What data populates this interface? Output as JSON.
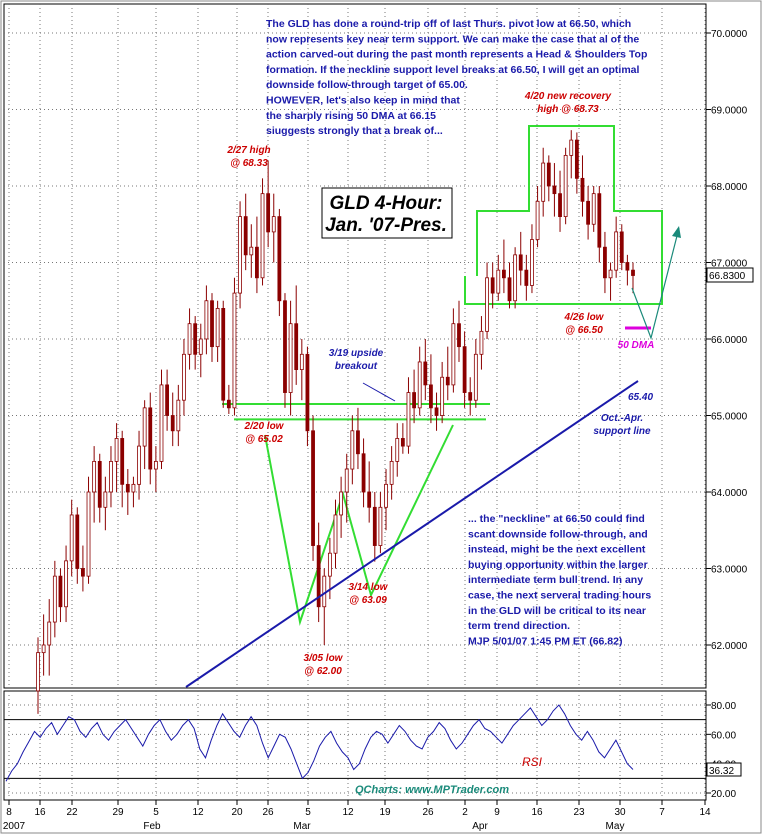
{
  "chart_data": {
    "type": "candlestick",
    "title_box": [
      "GLD 4-Hour:",
      "Jan. '07-Pres."
    ],
    "price_axis": {
      "ticks": [
        62.0,
        63.0,
        64.0,
        65.0,
        66.0,
        67.0,
        68.0,
        69.0,
        70.0
      ],
      "tick_labels": [
        "62.0000",
        "63.0000",
        "64.0000",
        "65.0000",
        "66.0000",
        "67.0000",
        "68.0000",
        "69.0000",
        "70.0000"
      ],
      "ylim": [
        61.6,
        70.4
      ],
      "last_price_label": "66.8300",
      "last_price": 66.83
    },
    "x_axis": {
      "tick_labels": [
        "8",
        "16",
        "22",
        "29",
        "5",
        "12",
        "20",
        "26",
        "5",
        "12",
        "19",
        "26",
        "2",
        "9",
        "16",
        "23",
        "30",
        "7",
        "14"
      ],
      "month_labels": [
        "2007",
        "Feb",
        "Mar",
        "Apr",
        "May"
      ]
    },
    "price_bars": [
      {
        "o": 61.4,
        "h": 62.1,
        "l": 61.1,
        "c": 61.9
      },
      {
        "o": 61.9,
        "h": 62.4,
        "l": 61.6,
        "c": 62.0
      },
      {
        "o": 62.0,
        "h": 62.6,
        "l": 61.6,
        "c": 62.3
      },
      {
        "o": 62.3,
        "h": 63.1,
        "l": 62.1,
        "c": 62.9
      },
      {
        "o": 62.9,
        "h": 63.0,
        "l": 62.3,
        "c": 62.5
      },
      {
        "o": 62.5,
        "h": 63.3,
        "l": 62.3,
        "c": 63.1
      },
      {
        "o": 63.1,
        "h": 63.9,
        "l": 62.9,
        "c": 63.7
      },
      {
        "o": 63.7,
        "h": 63.8,
        "l": 62.8,
        "c": 63.0
      },
      {
        "o": 63.0,
        "h": 63.3,
        "l": 62.7,
        "c": 62.9
      },
      {
        "o": 62.9,
        "h": 64.2,
        "l": 62.8,
        "c": 64.0
      },
      {
        "o": 64.0,
        "h": 64.6,
        "l": 63.6,
        "c": 64.4
      },
      {
        "o": 64.4,
        "h": 64.5,
        "l": 63.6,
        "c": 63.8
      },
      {
        "o": 63.8,
        "h": 64.2,
        "l": 63.5,
        "c": 64.0
      },
      {
        "o": 64.0,
        "h": 64.6,
        "l": 63.8,
        "c": 64.4
      },
      {
        "o": 64.4,
        "h": 64.9,
        "l": 64.0,
        "c": 64.7
      },
      {
        "o": 64.7,
        "h": 64.8,
        "l": 63.8,
        "c": 64.1
      },
      {
        "o": 64.1,
        "h": 64.3,
        "l": 63.7,
        "c": 64.0
      },
      {
        "o": 64.0,
        "h": 64.2,
        "l": 63.8,
        "c": 64.1
      },
      {
        "o": 64.1,
        "h": 64.8,
        "l": 63.9,
        "c": 64.6
      },
      {
        "o": 64.6,
        "h": 65.2,
        "l": 64.3,
        "c": 65.1
      },
      {
        "o": 65.1,
        "h": 65.3,
        "l": 64.1,
        "c": 64.3
      },
      {
        "o": 64.3,
        "h": 64.6,
        "l": 64.0,
        "c": 64.4
      },
      {
        "o": 64.4,
        "h": 65.6,
        "l": 64.3,
        "c": 65.4
      },
      {
        "o": 65.4,
        "h": 65.6,
        "l": 64.8,
        "c": 65.0
      },
      {
        "o": 65.0,
        "h": 65.3,
        "l": 64.6,
        "c": 64.8
      },
      {
        "o": 64.8,
        "h": 65.4,
        "l": 64.6,
        "c": 65.2
      },
      {
        "o": 65.2,
        "h": 66.0,
        "l": 65.0,
        "c": 65.8
      },
      {
        "o": 65.8,
        "h": 66.4,
        "l": 65.6,
        "c": 66.2
      },
      {
        "o": 66.2,
        "h": 66.3,
        "l": 65.6,
        "c": 65.8
      },
      {
        "o": 65.8,
        "h": 66.2,
        "l": 65.5,
        "c": 66.0
      },
      {
        "o": 66.0,
        "h": 66.7,
        "l": 65.8,
        "c": 66.5
      },
      {
        "o": 66.5,
        "h": 66.6,
        "l": 65.7,
        "c": 65.9
      },
      {
        "o": 65.9,
        "h": 66.5,
        "l": 65.7,
        "c": 66.4
      },
      {
        "o": 66.4,
        "h": 66.5,
        "l": 65.1,
        "c": 65.2
      },
      {
        "o": 65.2,
        "h": 65.4,
        "l": 65.02,
        "c": 65.1
      },
      {
        "o": 65.1,
        "h": 66.8,
        "l": 65.0,
        "c": 66.6
      },
      {
        "o": 66.6,
        "h": 67.8,
        "l": 66.4,
        "c": 67.6
      },
      {
        "o": 67.6,
        "h": 67.9,
        "l": 66.9,
        "c": 67.1
      },
      {
        "o": 67.1,
        "h": 67.5,
        "l": 66.8,
        "c": 67.2
      },
      {
        "o": 67.2,
        "h": 67.6,
        "l": 66.6,
        "c": 66.8
      },
      {
        "o": 66.8,
        "h": 68.1,
        "l": 66.7,
        "c": 67.9
      },
      {
        "o": 67.9,
        "h": 68.33,
        "l": 67.2,
        "c": 67.4
      },
      {
        "o": 67.4,
        "h": 67.9,
        "l": 67.0,
        "c": 67.6
      },
      {
        "o": 67.6,
        "h": 67.7,
        "l": 66.3,
        "c": 66.5
      },
      {
        "o": 66.5,
        "h": 66.6,
        "l": 65.1,
        "c": 65.3
      },
      {
        "o": 65.3,
        "h": 66.5,
        "l": 65.0,
        "c": 66.2
      },
      {
        "o": 66.2,
        "h": 66.7,
        "l": 65.4,
        "c": 65.6
      },
      {
        "o": 65.6,
        "h": 66.0,
        "l": 65.2,
        "c": 65.8
      },
      {
        "o": 65.8,
        "h": 65.9,
        "l": 64.6,
        "c": 64.8
      },
      {
        "o": 64.8,
        "h": 65.0,
        "l": 63.1,
        "c": 63.3
      },
      {
        "o": 63.3,
        "h": 63.6,
        "l": 62.3,
        "c": 62.5
      },
      {
        "o": 62.5,
        "h": 63.0,
        "l": 62.0,
        "c": 62.9
      },
      {
        "o": 62.9,
        "h": 63.4,
        "l": 62.6,
        "c": 63.2
      },
      {
        "o": 63.2,
        "h": 63.9,
        "l": 63.0,
        "c": 63.7
      },
      {
        "o": 63.7,
        "h": 64.2,
        "l": 63.4,
        "c": 64.0
      },
      {
        "o": 64.0,
        "h": 64.5,
        "l": 63.6,
        "c": 64.3
      },
      {
        "o": 64.3,
        "h": 65.0,
        "l": 64.1,
        "c": 64.8
      },
      {
        "o": 64.8,
        "h": 65.1,
        "l": 64.3,
        "c": 64.5
      },
      {
        "o": 64.5,
        "h": 64.7,
        "l": 63.8,
        "c": 64.0
      },
      {
        "o": 64.0,
        "h": 64.4,
        "l": 63.6,
        "c": 63.8
      },
      {
        "o": 63.8,
        "h": 64.0,
        "l": 63.09,
        "c": 63.3
      },
      {
        "o": 63.3,
        "h": 64.0,
        "l": 63.2,
        "c": 63.8
      },
      {
        "o": 63.8,
        "h": 64.3,
        "l": 63.5,
        "c": 64.1
      },
      {
        "o": 64.1,
        "h": 64.6,
        "l": 63.9,
        "c": 64.4
      },
      {
        "o": 64.4,
        "h": 64.9,
        "l": 64.2,
        "c": 64.7
      },
      {
        "o": 64.7,
        "h": 64.9,
        "l": 64.5,
        "c": 64.6
      },
      {
        "o": 64.6,
        "h": 65.5,
        "l": 64.5,
        "c": 65.3
      },
      {
        "o": 65.3,
        "h": 65.6,
        "l": 64.9,
        "c": 65.1
      },
      {
        "o": 65.1,
        "h": 65.9,
        "l": 65.0,
        "c": 65.7
      },
      {
        "o": 65.7,
        "h": 66.0,
        "l": 65.2,
        "c": 65.4
      },
      {
        "o": 65.4,
        "h": 65.8,
        "l": 64.9,
        "c": 65.1
      },
      {
        "o": 65.1,
        "h": 65.3,
        "l": 64.8,
        "c": 65.0
      },
      {
        "o": 65.0,
        "h": 65.7,
        "l": 64.9,
        "c": 65.5
      },
      {
        "o": 65.5,
        "h": 65.9,
        "l": 65.2,
        "c": 65.4
      },
      {
        "o": 65.4,
        "h": 66.4,
        "l": 65.3,
        "c": 66.2
      },
      {
        "o": 66.2,
        "h": 66.5,
        "l": 65.7,
        "c": 65.9
      },
      {
        "o": 65.9,
        "h": 66.1,
        "l": 65.1,
        "c": 65.3
      },
      {
        "o": 65.3,
        "h": 65.5,
        "l": 65.0,
        "c": 65.2
      },
      {
        "o": 65.2,
        "h": 66.0,
        "l": 65.1,
        "c": 65.8
      },
      {
        "o": 65.8,
        "h": 66.3,
        "l": 65.6,
        "c": 66.1
      },
      {
        "o": 66.1,
        "h": 67.0,
        "l": 66.0,
        "c": 66.8
      },
      {
        "o": 66.8,
        "h": 67.0,
        "l": 66.4,
        "c": 66.6
      },
      {
        "o": 66.6,
        "h": 67.1,
        "l": 66.5,
        "c": 66.9
      },
      {
        "o": 66.9,
        "h": 67.3,
        "l": 66.6,
        "c": 66.8
      },
      {
        "o": 66.8,
        "h": 67.0,
        "l": 66.4,
        "c": 66.5
      },
      {
        "o": 66.5,
        "h": 67.2,
        "l": 66.4,
        "c": 67.1
      },
      {
        "o": 67.1,
        "h": 67.4,
        "l": 66.7,
        "c": 66.9
      },
      {
        "o": 66.9,
        "h": 67.1,
        "l": 66.5,
        "c": 66.7
      },
      {
        "o": 66.7,
        "h": 67.5,
        "l": 66.6,
        "c": 67.3
      },
      {
        "o": 67.3,
        "h": 68.0,
        "l": 67.2,
        "c": 67.8
      },
      {
        "o": 67.8,
        "h": 68.5,
        "l": 67.6,
        "c": 68.3
      },
      {
        "o": 68.3,
        "h": 68.4,
        "l": 67.8,
        "c": 68.0
      },
      {
        "o": 68.0,
        "h": 68.3,
        "l": 67.6,
        "c": 67.9
      },
      {
        "o": 67.9,
        "h": 68.2,
        "l": 67.4,
        "c": 67.6
      },
      {
        "o": 67.6,
        "h": 68.5,
        "l": 67.5,
        "c": 68.4
      },
      {
        "o": 68.4,
        "h": 68.73,
        "l": 68.1,
        "c": 68.6
      },
      {
        "o": 68.6,
        "h": 68.7,
        "l": 67.9,
        "c": 68.1
      },
      {
        "o": 68.1,
        "h": 68.4,
        "l": 67.6,
        "c": 67.8
      },
      {
        "o": 67.8,
        "h": 68.0,
        "l": 67.3,
        "c": 67.5
      },
      {
        "o": 67.5,
        "h": 68.0,
        "l": 67.4,
        "c": 67.9
      },
      {
        "o": 67.9,
        "h": 68.0,
        "l": 67.0,
        "c": 67.2
      },
      {
        "o": 67.2,
        "h": 67.4,
        "l": 66.6,
        "c": 66.8
      },
      {
        "o": 66.8,
        "h": 67.0,
        "l": 66.5,
        "c": 66.9
      },
      {
        "o": 66.9,
        "h": 67.6,
        "l": 66.8,
        "c": 67.4
      },
      {
        "o": 67.4,
        "h": 67.5,
        "l": 66.9,
        "c": 67.0
      },
      {
        "o": 67.0,
        "h": 67.1,
        "l": 66.7,
        "c": 66.9
      },
      {
        "o": 66.9,
        "h": 67.0,
        "l": 66.6,
        "c": 66.83
      }
    ],
    "rsi": {
      "label": "RSI",
      "ylim": [
        17,
        88
      ],
      "ticks": [
        20,
        40,
        60,
        80
      ],
      "tick_labels": [
        "20.00",
        "40.00",
        "60.00",
        "80.00"
      ],
      "levels": [
        30,
        70
      ],
      "last_value_label": "36.32",
      "values": [
        28,
        35,
        40,
        48,
        55,
        62,
        58,
        64,
        68,
        60,
        66,
        72,
        70,
        62,
        58,
        64,
        68,
        60,
        56,
        62,
        66,
        70,
        64,
        58,
        52,
        60,
        66,
        70,
        62,
        56,
        60,
        66,
        70,
        64,
        50,
        44,
        56,
        66,
        74,
        68,
        62,
        58,
        66,
        72,
        66,
        54,
        44,
        52,
        60,
        58,
        50,
        40,
        30,
        34,
        42,
        52,
        58,
        62,
        54,
        48,
        44,
        36,
        40,
        50,
        58,
        62,
        60,
        54,
        60,
        66,
        62,
        56,
        52,
        50,
        58,
        62,
        68,
        64,
        56,
        50,
        54,
        60,
        66,
        70,
        64,
        62,
        58,
        54,
        60,
        66,
        70,
        74,
        78,
        72,
        66,
        70,
        76,
        80,
        74,
        66,
        60,
        56,
        62,
        56,
        48,
        44,
        50,
        56,
        48,
        40,
        36
      ]
    },
    "lines": {
      "neckline": {
        "price": 66.5,
        "label": "4/26 low",
        "sublabel": "@ 66.50"
      },
      "breakout_line_high": 65.15,
      "breakout_line_low": 64.95,
      "support_line_label": [
        "Oct.-Apr.",
        "support line"
      ],
      "support_value_label": "65.40",
      "dma_label": "50 DMA"
    },
    "annotations": [
      {
        "id": "a-227",
        "lines": [
          "2/27 high",
          "@ 68.33"
        ]
      },
      {
        "id": "a-220",
        "lines": [
          "2/20 low",
          "@ 65.02"
        ]
      },
      {
        "id": "a-305",
        "lines": [
          "3/05 low",
          "@ 62.00"
        ]
      },
      {
        "id": "a-314",
        "lines": [
          "3/14 low",
          "@ 63.09"
        ]
      },
      {
        "id": "a-319",
        "lines": [
          "3/19 upside",
          "breakout"
        ]
      },
      {
        "id": "a-420",
        "lines": [
          "4/20 new recovery",
          "high @ 68.73"
        ]
      }
    ],
    "commentary_top": [
      "The GLD has done a round-trip off of last Thurs. pivot low at 66.50, which",
      "now represents key near term support. We can make the case that al of the",
      "action carved-out during the past month represents a Head & Shoulders Top",
      "formation. If the neckline support level breaks at 66.50, I will get an optimal",
      "downside follow-through target of 65.00.",
      "HOWEVER, let's also keep in mind that",
      "the sharply rising 50 DMA at 66.15",
      "siuggests strongly that a break of..."
    ],
    "commentary_bottom": [
      "... the \"neckline\" at 66.50 could find",
      "scant downside follow-through, and",
      "instead, might be the next excellent",
      "buying opportunity within the larger",
      "intermediate term bull trend. In any",
      "case, the next serveral trading hours",
      "in the GLD will be critical to its near",
      "term trend direction.",
      "MJP  5/01/07  1:45 PM ET (66.82)"
    ],
    "watermark": "QCharts: www.MPTrader.com",
    "colors": {
      "candle": "#8b0000",
      "annotation_red": "#cc0000",
      "blue": "#1a1aaa",
      "green": "#33dd33",
      "magenta": "#dd00dd",
      "teal": "#1a8a7a",
      "label_box": "#ffff00"
    }
  }
}
